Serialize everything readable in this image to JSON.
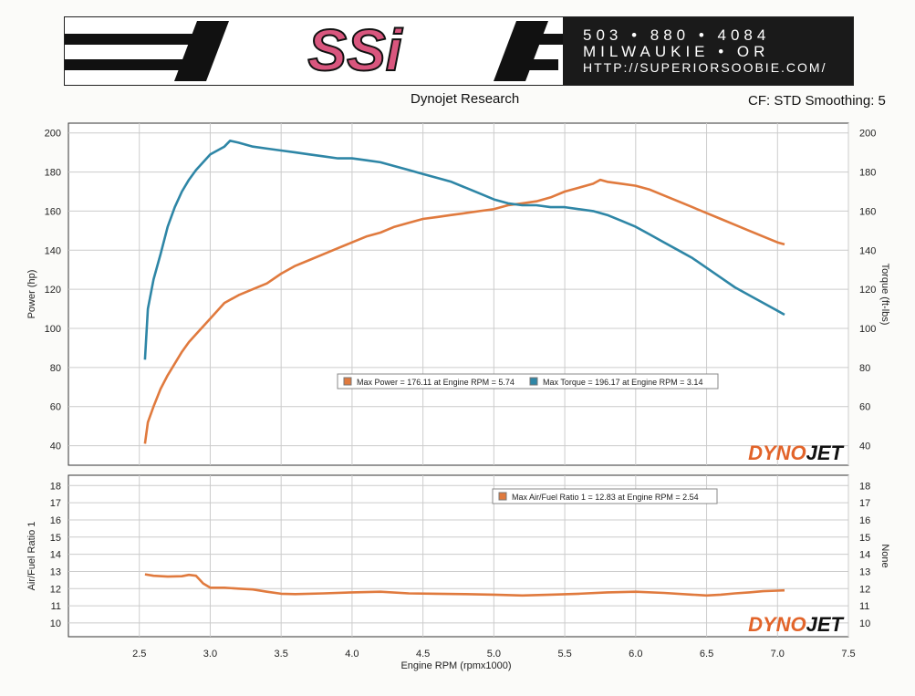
{
  "header": {
    "phone": "503 • 880 • 4084",
    "city": "MILWAUKIE  •  OR",
    "url": "HTTP://SUPERIORSOOBIE.COM/",
    "logo_text": "SSi",
    "title": "Dynojet Research",
    "correction": "CF: STD Smoothing: 5"
  },
  "colors": {
    "power": "#e07a3e",
    "torque": "#2e86a6",
    "afr": "#e07a3e",
    "grid": "#cccccc",
    "logo_pink": "#d9567e",
    "dynojet_orange": "#e2642a"
  },
  "watermark": {
    "left": "DYNO",
    "right": "JET"
  },
  "chart_data": [
    {
      "type": "line",
      "xlabel": "Engine RPM (rpmx1000)",
      "ylabel": "Power (hp)",
      "y2label": "Torque (ft-lbs)",
      "xlim": [
        2.0,
        7.5
      ],
      "ylim": [
        30,
        205
      ],
      "y_ticks": [
        40,
        60,
        80,
        100,
        120,
        140,
        160,
        180,
        200
      ],
      "y2_ticks": [
        40,
        60,
        80,
        100,
        120,
        140,
        160,
        180,
        200
      ],
      "grid": true,
      "legend": "Max Power = 176.11 at Engine RPM = 5.74",
      "legend2": "Max Torque = 196.17 at Engine RPM = 3.14",
      "legend_position": "center",
      "series": [
        {
          "id": "power",
          "x": [
            2.54,
            2.56,
            2.6,
            2.65,
            2.7,
            2.75,
            2.8,
            2.85,
            2.9,
            3.0,
            3.1,
            3.2,
            3.3,
            3.4,
            3.5,
            3.6,
            3.7,
            3.8,
            3.9,
            4.0,
            4.1,
            4.2,
            4.3,
            4.4,
            4.5,
            4.6,
            4.7,
            4.8,
            4.9,
            5.0,
            5.1,
            5.2,
            5.3,
            5.4,
            5.5,
            5.6,
            5.7,
            5.75,
            5.8,
            5.9,
            6.0,
            6.1,
            6.2,
            6.3,
            6.4,
            6.5,
            6.6,
            6.7,
            6.8,
            6.9,
            7.0,
            7.05
          ],
          "y": [
            41,
            52,
            60,
            69,
            76,
            82,
            88,
            93,
            97,
            105,
            113,
            117,
            120,
            123,
            128,
            132,
            135,
            138,
            141,
            144,
            147,
            149,
            152,
            154,
            156,
            157,
            158,
            159,
            160,
            161,
            163,
            164,
            165,
            167,
            170,
            172,
            174,
            176,
            175,
            174,
            173,
            171,
            168,
            165,
            162,
            159,
            156,
            153,
            150,
            147,
            144,
            143
          ]
        },
        {
          "id": "torque",
          "x": [
            2.54,
            2.56,
            2.6,
            2.65,
            2.7,
            2.75,
            2.8,
            2.85,
            2.9,
            3.0,
            3.1,
            3.14,
            3.2,
            3.3,
            3.4,
            3.5,
            3.6,
            3.7,
            3.8,
            3.9,
            4.0,
            4.1,
            4.2,
            4.3,
            4.4,
            4.5,
            4.6,
            4.7,
            4.8,
            4.9,
            5.0,
            5.1,
            5.2,
            5.3,
            5.4,
            5.5,
            5.6,
            5.7,
            5.8,
            5.9,
            6.0,
            6.1,
            6.2,
            6.3,
            6.4,
            6.5,
            6.6,
            6.7,
            6.8,
            6.9,
            7.0,
            7.05
          ],
          "y": [
            84,
            110,
            125,
            138,
            152,
            162,
            170,
            176,
            181,
            189,
            193,
            196,
            195,
            193,
            192,
            191,
            190,
            189,
            188,
            187,
            187,
            186,
            185,
            183,
            181,
            179,
            177,
            175,
            172,
            169,
            166,
            164,
            163,
            163,
            162,
            162,
            161,
            160,
            158,
            155,
            152,
            148,
            144,
            140,
            136,
            131,
            126,
            121,
            117,
            113,
            109,
            107
          ]
        }
      ]
    },
    {
      "type": "line",
      "xlabel": "Engine RPM (rpmx1000)",
      "ylabel": "Air/Fuel Ratio 1",
      "y2label": "None",
      "xlim": [
        2.0,
        7.5
      ],
      "ylim": [
        9.2,
        18.6
      ],
      "y_ticks": [
        10,
        11,
        12,
        13,
        14,
        15,
        16,
        17,
        18
      ],
      "y2_ticks": [
        10,
        11,
        12,
        13,
        14,
        15,
        16,
        17,
        18
      ],
      "x_ticks": [
        "2.5",
        "3.0",
        "3.5",
        "4.0",
        "4.5",
        "5.0",
        "5.5",
        "6.0",
        "6.5",
        "7.0",
        "7.5"
      ],
      "x_tick_values": [
        2.5,
        3.0,
        3.5,
        4.0,
        4.5,
        5.0,
        5.5,
        6.0,
        6.5,
        7.0,
        7.5
      ],
      "grid": true,
      "legend": "Max Air/Fuel Ratio 1 = 12.83 at Engine RPM = 2.54",
      "legend_position": "top-center",
      "series": [
        {
          "id": "afr",
          "x": [
            2.54,
            2.6,
            2.7,
            2.8,
            2.85,
            2.9,
            2.95,
            3.0,
            3.1,
            3.2,
            3.3,
            3.4,
            3.5,
            3.6,
            3.8,
            4.0,
            4.2,
            4.4,
            4.6,
            4.8,
            5.0,
            5.2,
            5.4,
            5.6,
            5.8,
            6.0,
            6.2,
            6.4,
            6.5,
            6.6,
            6.7,
            6.8,
            6.9,
            7.0,
            7.05
          ],
          "y": [
            12.83,
            12.75,
            12.7,
            12.72,
            12.8,
            12.75,
            12.3,
            12.05,
            12.05,
            12.0,
            11.95,
            11.82,
            11.7,
            11.68,
            11.72,
            11.78,
            11.82,
            11.72,
            11.7,
            11.68,
            11.65,
            11.6,
            11.65,
            11.7,
            11.78,
            11.82,
            11.75,
            11.65,
            11.6,
            11.65,
            11.72,
            11.78,
            11.85,
            11.88,
            11.9
          ]
        }
      ]
    }
  ]
}
